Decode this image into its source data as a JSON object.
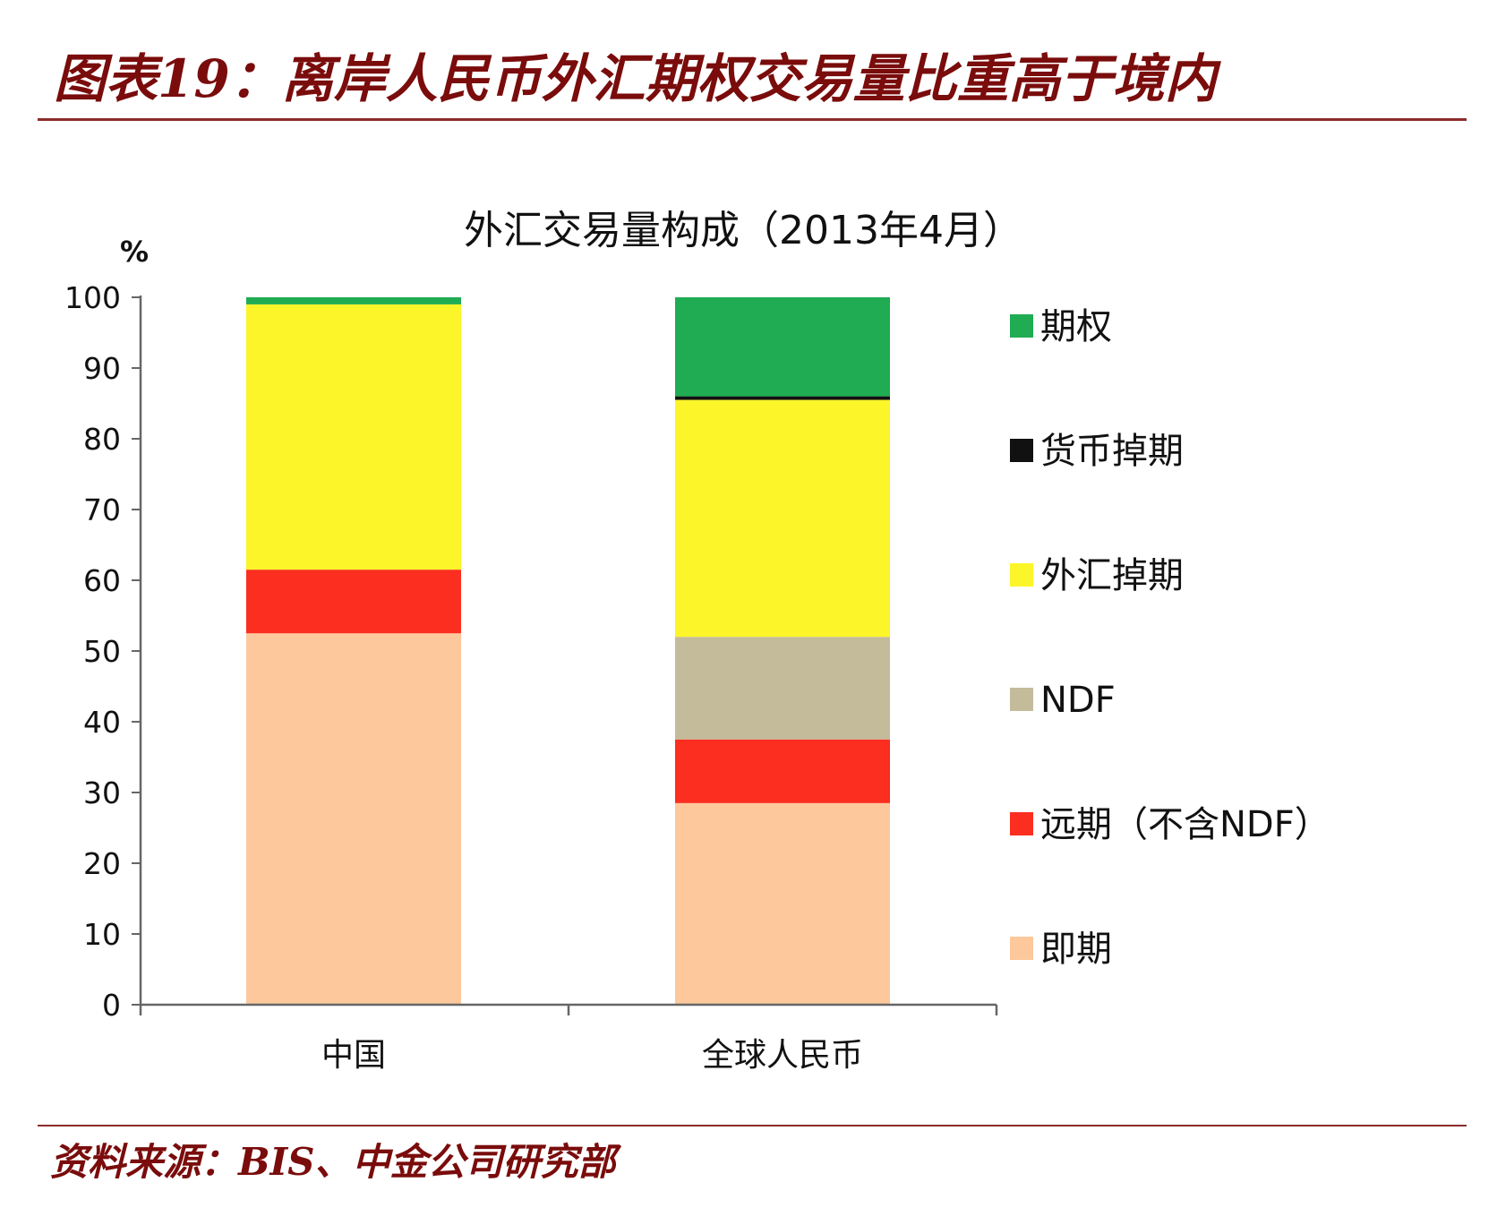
{
  "figure": {
    "title": "图表19：离岸人民币外汇期权交易量比重高于境内",
    "source": "资料来源：BIS、中金公司研究部"
  },
  "chart_data": {
    "type": "bar",
    "stacked": true,
    "title": "外汇交易量构成（2013年4月）",
    "ylabel": "%",
    "xlabel": "",
    "ylim": [
      0,
      100
    ],
    "yticks": [
      0,
      10,
      20,
      30,
      40,
      50,
      60,
      70,
      80,
      90,
      100
    ],
    "categories": [
      "中国",
      "全球人民币"
    ],
    "series": [
      {
        "name": "即期",
        "color": "#fcc89c",
        "values": [
          52.5,
          28.5
        ]
      },
      {
        "name": "远期（不含NDF）",
        "color": "#fb2e20",
        "values": [
          9,
          9
        ]
      },
      {
        "name": "NDF",
        "color": "#c4bb9b",
        "values": [
          0,
          14.5
        ]
      },
      {
        "name": "外汇掉期",
        "color": "#fcf52a",
        "values": [
          37.5,
          33.5
        ]
      },
      {
        "name": "货币掉期",
        "color": "#111111",
        "values": [
          0,
          0.5
        ]
      },
      {
        "name": "期权",
        "color": "#1fac52",
        "values": [
          1,
          14
        ]
      }
    ],
    "legend_position": "right"
  }
}
